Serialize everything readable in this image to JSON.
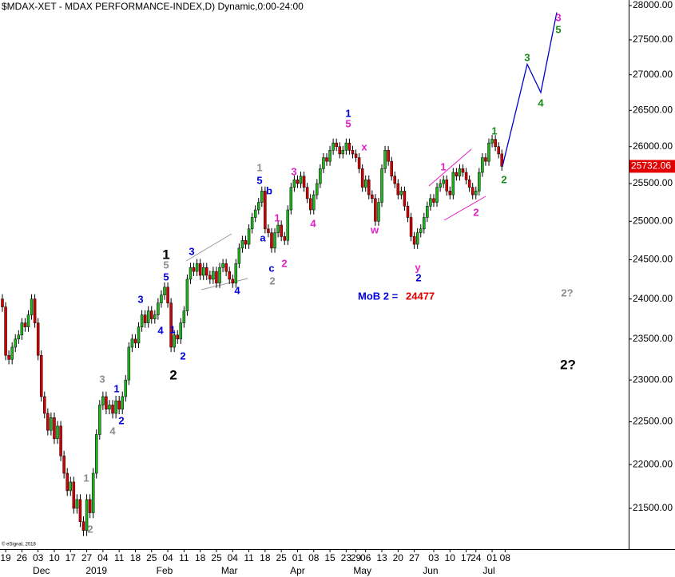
{
  "chart_data": {
    "type": "candlestick",
    "title": "$MDAX-XET - MDAX PERFORMANCE-INDEX,D) Dynamic,0:00-24:00",
    "copyright": "© eSignal, 2018",
    "log_scale": true,
    "grid": false,
    "up_color": "#1fb31f",
    "down_color": "#d40000",
    "ylim": [
      21045,
      28082
    ],
    "yticks": [
      {
        "value": 21500,
        "label": "21500.00"
      },
      {
        "value": 22000,
        "label": "22000.00"
      },
      {
        "value": 22500,
        "label": "22500.00"
      },
      {
        "value": 23000,
        "label": "23000.00"
      },
      {
        "value": 23500,
        "label": "23500.00"
      },
      {
        "value": 24000,
        "label": "24000.00"
      },
      {
        "value": 24500,
        "label": "24500.00"
      },
      {
        "value": 25000,
        "label": "25000.00"
      },
      {
        "value": 25500,
        "label": "25500.00"
      },
      {
        "value": 26000,
        "label": "26000.00"
      },
      {
        "value": 26500,
        "label": "26500.00"
      },
      {
        "value": 27000,
        "label": "27000.00"
      },
      {
        "value": 27500,
        "label": "27500.00"
      },
      {
        "value": 28000,
        "label": "28000.00"
      }
    ],
    "last_price": 25732.06,
    "last_price_color": "#e00000",
    "categories": [
      null,
      "19",
      null,
      null,
      null,
      null,
      "26",
      null,
      null,
      null,
      null,
      "03",
      null,
      null,
      null,
      null,
      "10",
      null,
      null,
      null,
      null,
      "17",
      null,
      null,
      null,
      null,
      "27",
      null,
      null,
      null,
      null,
      "04",
      null,
      null,
      null,
      null,
      "11",
      null,
      null,
      null,
      null,
      "18",
      null,
      null,
      null,
      null,
      "25",
      null,
      null,
      null,
      null,
      "04",
      null,
      null,
      null,
      null,
      "11",
      null,
      null,
      null,
      null,
      "18",
      null,
      null,
      null,
      null,
      "25",
      null,
      null,
      null,
      null,
      "04",
      null,
      null,
      null,
      null,
      "11",
      null,
      null,
      null,
      null,
      "18",
      null,
      null,
      null,
      null,
      "25",
      null,
      null,
      null,
      null,
      "01",
      null,
      null,
      null,
      null,
      "08",
      null,
      null,
      null,
      null,
      "15",
      null,
      null,
      null,
      null,
      "23",
      null,
      null,
      "29",
      null,
      null,
      "06",
      null,
      null,
      null,
      null,
      "13",
      null,
      null,
      null,
      null,
      "20",
      null,
      null,
      null,
      null,
      "27",
      null,
      null,
      null,
      null,
      null,
      "03",
      null,
      null,
      null,
      null,
      "10",
      null,
      null,
      null,
      null,
      "17",
      null,
      null,
      "24",
      null,
      null,
      null,
      null,
      "01",
      null,
      null,
      null,
      "08"
    ],
    "months": [
      null,
      null,
      null,
      null,
      null,
      null,
      null,
      null,
      null,
      null,
      null,
      null,
      "Dec",
      null,
      null,
      null,
      null,
      null,
      null,
      null,
      null,
      null,
      null,
      null,
      null,
      null,
      null,
      null,
      null,
      "2019",
      null,
      null,
      null,
      null,
      null,
      null,
      null,
      null,
      null,
      null,
      null,
      null,
      null,
      null,
      null,
      null,
      null,
      null,
      null,
      null,
      "Feb",
      null,
      null,
      null,
      null,
      null,
      null,
      null,
      null,
      null,
      null,
      null,
      null,
      null,
      null,
      null,
      null,
      null,
      null,
      null,
      "Mar",
      null,
      null,
      null,
      null,
      null,
      null,
      null,
      null,
      null,
      null,
      null,
      null,
      null,
      null,
      null,
      null,
      null,
      null,
      null,
      null,
      "Apr",
      null,
      null,
      null,
      null,
      null,
      null,
      null,
      null,
      null,
      null,
      null,
      null,
      null,
      null,
      null,
      null,
      null,
      null,
      null,
      "May",
      null,
      null,
      null,
      null,
      null,
      null,
      null,
      null,
      null,
      null,
      null,
      null,
      null,
      null,
      null,
      null,
      null,
      null,
      null,
      null,
      "Jun",
      null,
      null,
      null,
      null,
      null,
      null,
      null,
      null,
      null,
      null,
      null,
      null,
      null,
      null,
      null,
      null,
      null,
      "Jul",
      null,
      null,
      null,
      null
    ],
    "open": [
      24000,
      23900,
      23300,
      23250,
      23400,
      23500,
      23550,
      23700,
      23650,
      23800,
      24000,
      23700,
      23300,
      22800,
      22600,
      22400,
      22550,
      22300,
      22450,
      22100,
      21900,
      21700,
      21800,
      21500,
      21600,
      21350,
      21250,
      21600,
      21450,
      21900,
      22350,
      22700,
      22800,
      22650,
      22700,
      22600,
      22750,
      22650,
      22800,
      23000,
      23400,
      23500,
      23450,
      23650,
      23800,
      23700,
      23850,
      23750,
      23800,
      23950,
      24050,
      24150,
      23950,
      23400,
      23550,
      23500,
      23700,
      23850,
      24250,
      24400,
      24350,
      24450,
      24300,
      24400,
      24300,
      24250,
      24350,
      24200,
      24400,
      24450,
      24350,
      24250,
      24200,
      24450,
      24650,
      24750,
      24700,
      24900,
      25050,
      25150,
      25250,
      25400,
      24900,
      24850,
      24650,
      24850,
      24950,
      24800,
      24750,
      25150,
      25450,
      25550,
      25500,
      25600,
      25450,
      25300,
      25150,
      25350,
      25500,
      25700,
      25850,
      25800,
      25950,
      26050,
      26000,
      25900,
      25950,
      26050,
      25950,
      25900,
      25850,
      25700,
      25450,
      25550,
      25350,
      25300,
      25000,
      25250,
      25700,
      25950,
      25800,
      25600,
      25500,
      25350,
      25400,
      25200,
      25050,
      24800,
      24700,
      24850,
      24900,
      25050,
      25200,
      25300,
      25250,
      25450,
      25500,
      25550,
      25400,
      25350,
      25650,
      25600,
      25700,
      25650,
      25550,
      25450,
      25350,
      25400,
      25650,
      25850,
      25800,
      26050,
      26100,
      26000,
      25900
    ],
    "high": [
      24060,
      23960,
      23360,
      23460,
      23560,
      23610,
      23760,
      23760,
      23860,
      24060,
      24060,
      23760,
      23360,
      22860,
      22660,
      22610,
      22610,
      22510,
      22510,
      22160,
      21960,
      21860,
      21860,
      21660,
      21660,
      21410,
      21660,
      21660,
      21960,
      22410,
      22760,
      22860,
      22860,
      22760,
      22760,
      22810,
      22810,
      22860,
      23060,
      23460,
      23560,
      23560,
      23710,
      23860,
      23860,
      23910,
      23910,
      23860,
      24010,
      24110,
      24210,
      24210,
      24010,
      23610,
      23610,
      23760,
      23910,
      24310,
      24460,
      24460,
      24510,
      24510,
      24460,
      24460,
      24360,
      24410,
      24410,
      24460,
      24510,
      24510,
      24410,
      24310,
      24510,
      24710,
      24810,
      24810,
      24960,
      25110,
      25210,
      25310,
      25460,
      25460,
      24960,
      24910,
      24910,
      25010,
      25010,
      24860,
      25210,
      25510,
      25610,
      25610,
      25660,
      25660,
      25510,
      25360,
      25410,
      25560,
      25760,
      25910,
      25910,
      26010,
      26110,
      26110,
      26060,
      26010,
      26110,
      26110,
      26010,
      25960,
      25910,
      25760,
      25610,
      25610,
      25410,
      25360,
      25310,
      25760,
      26010,
      26010,
      25860,
      25660,
      25560,
      25460,
      25460,
      25260,
      25110,
      24860,
      24910,
      24960,
      25110,
      25260,
      25360,
      25360,
      25510,
      25560,
      25610,
      25610,
      25460,
      25710,
      25710,
      25760,
      25760,
      25710,
      25610,
      25510,
      25460,
      25710,
      25910,
      25910,
      26110,
      26160,
      26160,
      26060,
      25960
    ],
    "low": [
      23840,
      23240,
      23190,
      23190,
      23340,
      23440,
      23490,
      23590,
      23590,
      23740,
      23640,
      23240,
      22740,
      22540,
      22340,
      22340,
      22240,
      22240,
      22040,
      21840,
      21640,
      21640,
      21440,
      21440,
      21290,
      21190,
      21190,
      21390,
      21390,
      21840,
      22290,
      22640,
      22590,
      22590,
      22540,
      22540,
      22590,
      22590,
      22740,
      22940,
      23340,
      23390,
      23390,
      23590,
      23640,
      23640,
      23690,
      23690,
      23740,
      23890,
      23990,
      23890,
      23340,
      23340,
      23440,
      23440,
      23640,
      23790,
      24190,
      24290,
      24290,
      24240,
      24240,
      24240,
      24190,
      24190,
      24140,
      24140,
      24340,
      24290,
      24190,
      24140,
      24140,
      24390,
      24590,
      24640,
      24640,
      24840,
      24990,
      25090,
      25190,
      24840,
      24790,
      24590,
      24590,
      24790,
      24740,
      24690,
      24690,
      25090,
      25390,
      25440,
      25440,
      25390,
      25240,
      25090,
      25090,
      25290,
      25440,
      25640,
      25740,
      25740,
      25890,
      25940,
      25840,
      25840,
      25890,
      25890,
      25840,
      25790,
      25640,
      25390,
      25390,
      25290,
      25240,
      24940,
      24940,
      25190,
      25640,
      25740,
      25540,
      25440,
      25290,
      25290,
      25140,
      24990,
      24740,
      24640,
      24640,
      24790,
      24840,
      24990,
      25140,
      25190,
      25190,
      25390,
      25440,
      25340,
      25290,
      25290,
      25540,
      25540,
      25590,
      25490,
      25390,
      25290,
      25290,
      25340,
      25590,
      25740,
      25740,
      25990,
      25940,
      25840,
      25672
    ],
    "close": [
      23900,
      23300,
      23250,
      23400,
      23500,
      23550,
      23700,
      23650,
      23800,
      24000,
      23700,
      23300,
      22800,
      22600,
      22400,
      22550,
      22300,
      22450,
      22100,
      21900,
      21700,
      21800,
      21500,
      21600,
      21350,
      21250,
      21600,
      21450,
      21900,
      22350,
      22700,
      22800,
      22650,
      22700,
      22600,
      22750,
      22650,
      22800,
      23000,
      23400,
      23500,
      23450,
      23650,
      23800,
      23700,
      23850,
      23750,
      23800,
      23950,
      24050,
      24150,
      23950,
      23400,
      23550,
      23500,
      23700,
      23850,
      24250,
      24400,
      24350,
      24450,
      24300,
      24400,
      24300,
      24250,
      24350,
      24200,
      24400,
      24450,
      24350,
      24250,
      24200,
      24450,
      24650,
      24750,
      24700,
      24900,
      25050,
      25150,
      25250,
      25400,
      24900,
      24850,
      24650,
      24850,
      24950,
      24800,
      24750,
      25150,
      25450,
      25550,
      25500,
      25600,
      25450,
      25300,
      25150,
      25350,
      25500,
      25700,
      25850,
      25800,
      25950,
      26050,
      26000,
      25900,
      25950,
      26050,
      25950,
      25900,
      25850,
      25700,
      25450,
      25550,
      25350,
      25300,
      25000,
      25250,
      25700,
      25950,
      25800,
      25600,
      25500,
      25350,
      25400,
      25200,
      25050,
      24800,
      24700,
      24850,
      24900,
      25050,
      25200,
      25300,
      25250,
      25450,
      25500,
      25550,
      25400,
      25350,
      25650,
      25600,
      25700,
      25650,
      25550,
      25450,
      25350,
      25400,
      25650,
      25850,
      25800,
      26050,
      26100,
      26000,
      25900,
      25732.06
    ],
    "projection": {
      "color": "#0000cc",
      "values": [
        25732.06,
        27150,
        26750,
        27900
      ]
    },
    "mob": {
      "label": "MoB 2 =",
      "value": 24477,
      "color": "#0000dd",
      "value_color": "#e00000"
    },
    "annotations": [
      {
        "text": "1",
        "color": "#8c8c8c"
      },
      {
        "text": "2",
        "color": "#8c8c8c"
      },
      {
        "text": "3",
        "color": "#8c8c8c"
      },
      {
        "text": "4",
        "color": "#8c8c8c"
      },
      {
        "text": "1",
        "color": "#0000dd"
      },
      {
        "text": "2",
        "color": "#0000dd"
      },
      {
        "text": "3",
        "color": "#0000dd"
      },
      {
        "text": "4",
        "color": "#0000dd"
      },
      {
        "text": "1",
        "color": "#000000"
      },
      {
        "text": "5",
        "color": "#8c8c8c"
      },
      {
        "text": "5",
        "color": "#0000dd"
      },
      {
        "text": "1",
        "color": "#0000dd"
      },
      {
        "text": "2",
        "color": "#000000"
      },
      {
        "text": "2",
        "color": "#0000dd"
      },
      {
        "text": "3",
        "color": "#0000dd"
      },
      {
        "text": "4",
        "color": "#0000dd"
      },
      {
        "text": "1",
        "color": "#8c8c8c"
      },
      {
        "text": "5",
        "color": "#0000dd"
      },
      {
        "text": "b",
        "color": "#0000dd"
      },
      {
        "text": "a",
        "color": "#0000dd"
      },
      {
        "text": "c",
        "color": "#0000dd"
      },
      {
        "text": "2",
        "color": "#8c8c8c"
      },
      {
        "text": "1",
        "color": "#e020c8"
      },
      {
        "text": "2",
        "color": "#e020c8"
      },
      {
        "text": "3",
        "color": "#e020c8"
      },
      {
        "text": "4",
        "color": "#e020c8"
      },
      {
        "text": "1",
        "color": "#0000dd"
      },
      {
        "text": "5",
        "color": "#e020c8"
      },
      {
        "text": "x",
        "color": "#e020c8"
      },
      {
        "text": "w",
        "color": "#e020c8"
      },
      {
        "text": "y",
        "color": "#e020c8"
      },
      {
        "text": "2",
        "color": "#0000dd"
      },
      {
        "text": "1",
        "color": "#e020c8"
      },
      {
        "text": "2",
        "color": "#e020c8"
      },
      {
        "text": "1",
        "color": "#1a8a1a"
      },
      {
        "text": "2",
        "color": "#1a8a1a"
      },
      {
        "text": "3",
        "color": "#1a8a1a"
      },
      {
        "text": "4",
        "color": "#1a8a1a"
      },
      {
        "text": "3",
        "color": "#e020c8"
      },
      {
        "text": "5",
        "color": "#1a8a1a"
      },
      {
        "text": "2?",
        "color": "#8c8c8c"
      },
      {
        "text": "2?",
        "color": "#000000"
      }
    ]
  }
}
